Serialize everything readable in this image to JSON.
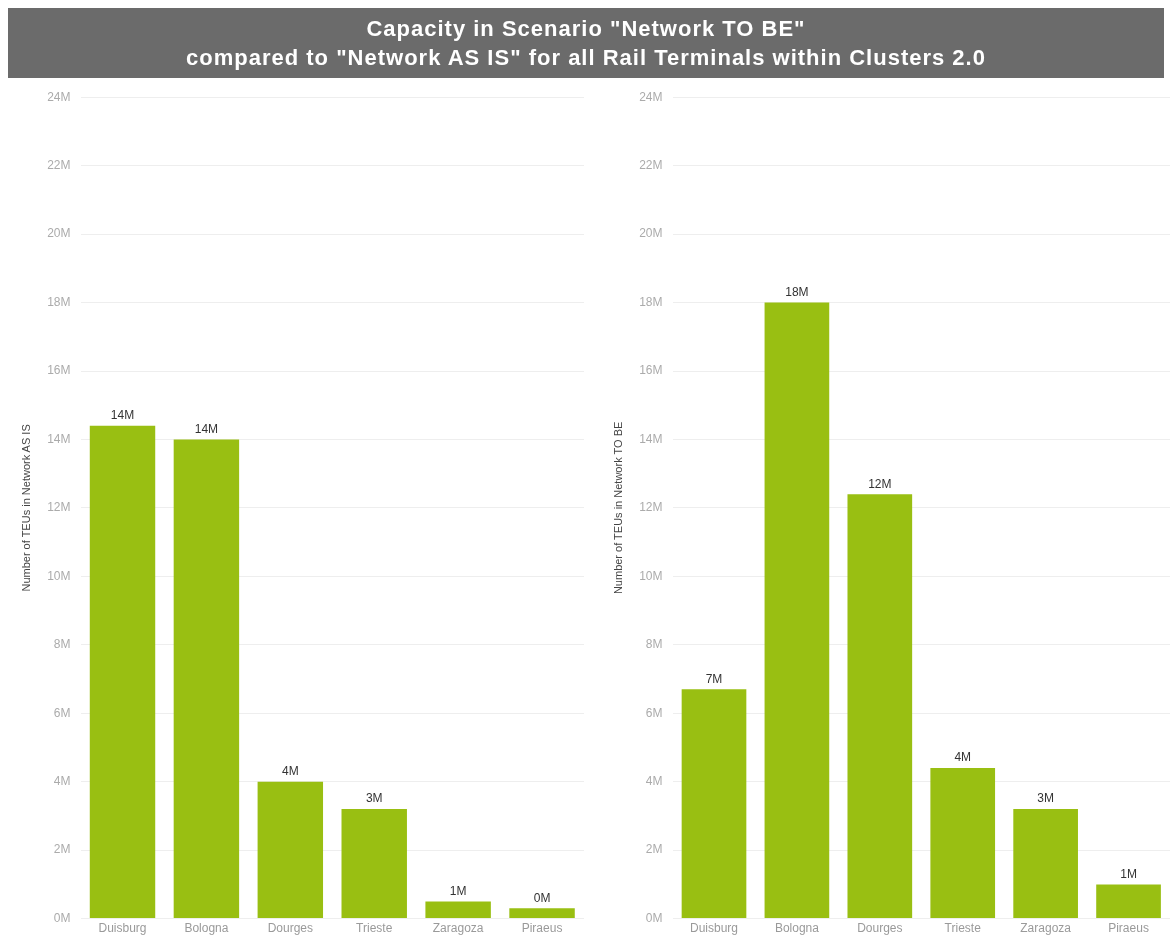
{
  "chart_data": [
    {
      "type": "bar",
      "title": "Capacity in Scenario \"Network TO BE\"\ncompared to \"Network AS IS\" for all Rail Terminals within Clusters 2.0",
      "ylabel": "Number of TEUs in Network AS IS",
      "categories": [
        "Duisburg",
        "Bologna",
        "Dourges",
        "Trieste",
        "Zaragoza",
        "Piraeus"
      ],
      "values": [
        14.4,
        14.0,
        4.0,
        3.2,
        0.5,
        0.3
      ],
      "value_labels": [
        "14M",
        "14M",
        "4M",
        "3M",
        "1M",
        "0M"
      ],
      "color": "#99bf12",
      "ylim": [
        0,
        24
      ],
      "yticks": [
        {
          "value": 0,
          "label": "0M"
        },
        {
          "value": 2,
          "label": "2M"
        },
        {
          "value": 4,
          "label": "4M"
        },
        {
          "value": 6,
          "label": "6M"
        },
        {
          "value": 8,
          "label": "8M"
        },
        {
          "value": 10,
          "label": "10M"
        },
        {
          "value": 12,
          "label": "12M"
        },
        {
          "value": 14,
          "label": "14M"
        },
        {
          "value": 16,
          "label": "16M"
        },
        {
          "value": 18,
          "label": "18M"
        },
        {
          "value": 20,
          "label": "20M"
        },
        {
          "value": 22,
          "label": "22M"
        },
        {
          "value": 24,
          "label": "24M"
        }
      ],
      "grid": "y"
    },
    {
      "type": "bar",
      "ylabel": "Number of TEUs in Network TO BE",
      "categories": [
        "Duisburg",
        "Bologna",
        "Dourges",
        "Trieste",
        "Zaragoza",
        "Piraeus"
      ],
      "values": [
        6.7,
        18.0,
        12.4,
        4.4,
        3.2,
        1.0
      ],
      "value_labels": [
        "7M",
        "18M",
        "12M",
        "4M",
        "3M",
        "1M"
      ],
      "color": "#99bf12",
      "ylim": [
        0,
        24
      ],
      "yticks": [
        {
          "value": 0,
          "label": "0M"
        },
        {
          "value": 2,
          "label": "2M"
        },
        {
          "value": 4,
          "label": "4M"
        },
        {
          "value": 6,
          "label": "6M"
        },
        {
          "value": 8,
          "label": "8M"
        },
        {
          "value": 10,
          "label": "10M"
        },
        {
          "value": 12,
          "label": "12M"
        },
        {
          "value": 14,
          "label": "14M"
        },
        {
          "value": 16,
          "label": "16M"
        },
        {
          "value": 18,
          "label": "18M"
        },
        {
          "value": 20,
          "label": "20M"
        },
        {
          "value": 22,
          "label": "22M"
        },
        {
          "value": 24,
          "label": "24M"
        }
      ],
      "grid": "y"
    }
  ]
}
